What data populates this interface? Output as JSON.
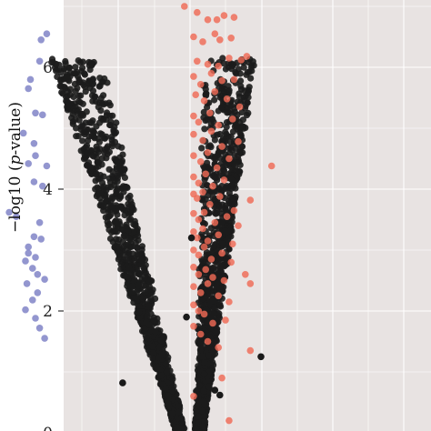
{
  "chart_data": {
    "type": "scatter",
    "title": "",
    "xlabel": "",
    "ylabel": {
      "prefix": "−log10 (",
      "italic": "p",
      "suffix": "-value)"
    },
    "ylim": [
      0,
      7
    ],
    "y_ticks": [
      {
        "value": 0,
        "label": "0"
      },
      {
        "value": 2,
        "label": "2"
      },
      {
        "value": 4,
        "label": "4"
      },
      {
        "value": 6,
        "label": "6"
      }
    ],
    "grid": true,
    "background": "#e8e3e2",
    "gridline_color": "#ffffff",
    "legend": "none",
    "series": [
      {
        "color": "#7b7fc4",
        "points": [
          [
            -2.1,
            6.45
          ],
          [
            -2.02,
            6.55
          ],
          [
            -2.12,
            6.1
          ],
          [
            -2.25,
            5.8
          ],
          [
            -2.28,
            5.65
          ],
          [
            -2.18,
            5.25
          ],
          [
            -2.08,
            5.22
          ],
          [
            -2.35,
            4.92
          ],
          [
            -2.2,
            4.75
          ],
          [
            -2.18,
            4.55
          ],
          [
            -2.28,
            4.42
          ],
          [
            -2.02,
            4.38
          ],
          [
            -2.2,
            4.12
          ],
          [
            -2.08,
            4.05
          ],
          [
            -2.55,
            3.62
          ],
          [
            -2.45,
            3.55
          ],
          [
            -2.12,
            3.45
          ],
          [
            -2.2,
            3.22
          ],
          [
            -2.1,
            3.18
          ],
          [
            -2.28,
            3.05
          ],
          [
            -2.28,
            2.95
          ],
          [
            -2.18,
            2.88
          ],
          [
            -2.32,
            2.82
          ],
          [
            -2.22,
            2.7
          ],
          [
            -2.15,
            2.6
          ],
          [
            -2.05,
            2.52
          ],
          [
            -2.3,
            2.45
          ],
          [
            -2.15,
            2.3
          ],
          [
            -2.22,
            2.18
          ],
          [
            -2.32,
            2.02
          ],
          [
            -2.18,
            1.88
          ],
          [
            -2.12,
            1.72
          ],
          [
            -2.05,
            1.55
          ]
        ]
      },
      {
        "color": "#ef6a55",
        "points": [
          [
            -0.08,
            7.0
          ],
          [
            0.1,
            6.9
          ],
          [
            0.25,
            6.78
          ],
          [
            0.38,
            6.78
          ],
          [
            0.48,
            6.85
          ],
          [
            0.62,
            6.82
          ],
          [
            0.05,
            6.5
          ],
          [
            0.18,
            6.42
          ],
          [
            0.35,
            6.55
          ],
          [
            0.42,
            6.45
          ],
          [
            0.58,
            6.48
          ],
          [
            0.8,
            6.18
          ],
          [
            0.1,
            6.1
          ],
          [
            0.25,
            6.05
          ],
          [
            0.4,
            6.02
          ],
          [
            0.55,
            6.15
          ],
          [
            0.72,
            6.12
          ],
          [
            0.05,
            5.85
          ],
          [
            0.15,
            5.72
          ],
          [
            0.3,
            5.9
          ],
          [
            0.45,
            5.78
          ],
          [
            0.62,
            5.8
          ],
          [
            0.08,
            5.55
          ],
          [
            0.2,
            5.45
          ],
          [
            0.35,
            5.6
          ],
          [
            0.52,
            5.48
          ],
          [
            0.7,
            5.35
          ],
          [
            0.05,
            5.2
          ],
          [
            0.12,
            5.1
          ],
          [
            0.28,
            5.25
          ],
          [
            0.4,
            5.05
          ],
          [
            0.6,
            5.15
          ],
          [
            0.05,
            4.9
          ],
          [
            0.18,
            4.8
          ],
          [
            0.3,
            4.95
          ],
          [
            0.45,
            4.7
          ],
          [
            0.68,
            4.78
          ],
          [
            0.05,
            4.55
          ],
          [
            0.15,
            4.45
          ],
          [
            0.25,
            4.6
          ],
          [
            0.38,
            4.35
          ],
          [
            0.55,
            4.5
          ],
          [
            1.15,
            4.38
          ],
          [
            0.05,
            4.2
          ],
          [
            0.12,
            4.1
          ],
          [
            0.22,
            4.25
          ],
          [
            0.32,
            4.05
          ],
          [
            0.48,
            4.15
          ],
          [
            0.05,
            3.92
          ],
          [
            0.1,
            3.85
          ],
          [
            0.18,
            3.95
          ],
          [
            0.28,
            3.75
          ],
          [
            0.42,
            3.88
          ],
          [
            0.62,
            3.65
          ],
          [
            0.85,
            3.82
          ],
          [
            0.05,
            3.6
          ],
          [
            0.12,
            3.5
          ],
          [
            0.2,
            3.62
          ],
          [
            0.35,
            3.45
          ],
          [
            0.52,
            3.55
          ],
          [
            0.68,
            3.4
          ],
          [
            0.05,
            3.3
          ],
          [
            0.1,
            3.2
          ],
          [
            0.18,
            3.35
          ],
          [
            0.25,
            3.15
          ],
          [
            0.4,
            3.25
          ],
          [
            0.6,
            3.1
          ],
          [
            0.05,
            3.0
          ],
          [
            0.12,
            2.92
          ],
          [
            0.2,
            3.05
          ],
          [
            0.3,
            2.85
          ],
          [
            0.45,
            2.95
          ],
          [
            0.58,
            2.8
          ],
          [
            0.05,
            2.72
          ],
          [
            0.12,
            2.6
          ],
          [
            0.22,
            2.68
          ],
          [
            0.32,
            2.55
          ],
          [
            0.48,
            2.5
          ],
          [
            0.78,
            2.6
          ],
          [
            0.05,
            2.4
          ],
          [
            0.15,
            2.3
          ],
          [
            0.25,
            2.45
          ],
          [
            0.4,
            2.25
          ],
          [
            0.55,
            2.15
          ],
          [
            0.85,
            2.45
          ],
          [
            0.05,
            2.1
          ],
          [
            0.12,
            2.0
          ],
          [
            0.2,
            1.95
          ],
          [
            0.32,
            1.8
          ],
          [
            0.5,
            1.85
          ],
          [
            0.05,
            1.75
          ],
          [
            0.15,
            1.62
          ],
          [
            0.25,
            1.5
          ],
          [
            0.4,
            1.4
          ],
          [
            0.85,
            1.35
          ],
          [
            0.05,
            0.6
          ],
          [
            0.45,
            0.9
          ],
          [
            0.55,
            0.2
          ]
        ]
      },
      {
        "color": "#1a1a1a",
        "points": [
          [
            1.0,
            1.25
          ],
          [
            -0.95,
            0.82
          ],
          [
            0.35,
            0.7
          ],
          [
            0.42,
            0.62
          ],
          [
            -0.05,
            1.9
          ],
          [
            0.02,
            3.2
          ]
        ]
      }
    ]
  }
}
